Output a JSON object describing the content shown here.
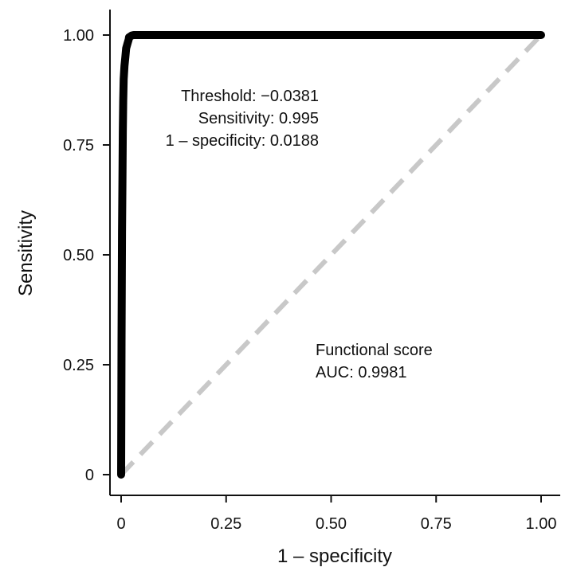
{
  "chart_data": {
    "type": "line",
    "title": "",
    "xlabel": "1 – specificity",
    "ylabel": "Sensitivity",
    "xlim": [
      0,
      1
    ],
    "ylim": [
      0,
      1
    ],
    "x_ticks": [
      0,
      0.25,
      0.5,
      0.75,
      1.0
    ],
    "x_tick_labels": [
      "0",
      "0.25",
      "0.50",
      "0.75",
      "1.00"
    ],
    "y_ticks": [
      0,
      0.25,
      0.5,
      0.75,
      1.0
    ],
    "y_tick_labels": [
      "0",
      "0.25",
      "0.50",
      "0.75",
      "1.00"
    ],
    "grid": false,
    "series": [
      {
        "color": "#000000",
        "style": "solid",
        "x": [
          0,
          0.001,
          0.002,
          0.003,
          0.004,
          0.005,
          0.006,
          0.008,
          0.01,
          0.012,
          0.015,
          0.018,
          0.0188,
          0.022,
          0.025,
          0.03,
          1.0
        ],
        "y": [
          0,
          0.3,
          0.55,
          0.66,
          0.78,
          0.85,
          0.9,
          0.93,
          0.95,
          0.97,
          0.98,
          0.99,
          0.995,
          0.997,
          0.999,
          1.0,
          1.0
        ]
      },
      {
        "color": "#c8c8c8",
        "style": "dashed",
        "x": [
          0,
          1
        ],
        "y": [
          0,
          1
        ]
      }
    ],
    "annotations": {
      "threshold": "Threshold: −0.0381",
      "sensitivity": "Sensitivity: 0.995",
      "one_minus_specificity": "1 – specificity: 0.0188",
      "score_name": "Functional score",
      "auc": "AUC: 0.9981"
    }
  }
}
